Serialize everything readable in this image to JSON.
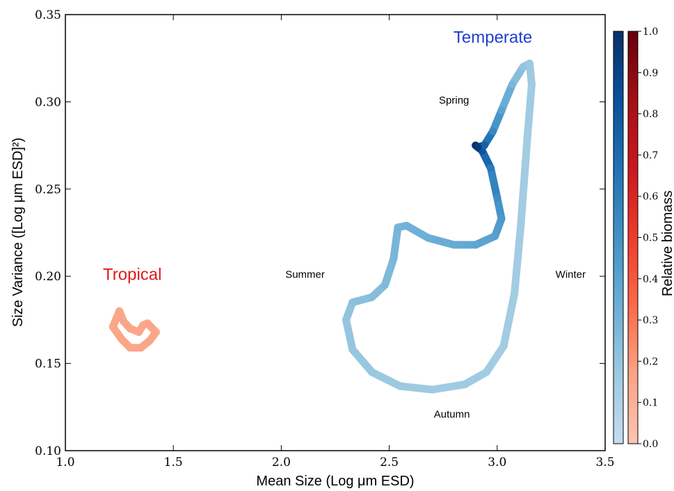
{
  "chart_data": {
    "type": "line",
    "xlabel": "Mean Size (Log μm ESD)",
    "ylabel": "Size Variance ([Log μm ESD]²)",
    "xlim": [
      1.0,
      3.5
    ],
    "ylim": [
      0.1,
      0.35
    ],
    "xticks": [
      1.0,
      1.5,
      2.0,
      2.5,
      3.0,
      3.5
    ],
    "xtick_labels": [
      "1.0",
      "1.5",
      "2.0",
      "2.5",
      "3.0",
      "3.5"
    ],
    "yticks": [
      0.1,
      0.15,
      0.2,
      0.25,
      0.3,
      0.35
    ],
    "ytick_labels": [
      "0.10",
      "0.15",
      "0.20",
      "0.25",
      "0.30",
      "0.35"
    ],
    "grid": false,
    "series": [
      {
        "name": "Temperate",
        "color": "#1f3fd1",
        "colormap": "Blues",
        "points": [
          {
            "x": 2.9,
            "y": 0.275,
            "biomass": 1.0
          },
          {
            "x": 2.93,
            "y": 0.272,
            "biomass": 0.82
          },
          {
            "x": 2.97,
            "y": 0.262,
            "biomass": 0.62
          },
          {
            "x": 3.0,
            "y": 0.245,
            "biomass": 0.52
          },
          {
            "x": 3.02,
            "y": 0.233,
            "biomass": 0.46
          },
          {
            "x": 2.99,
            "y": 0.223,
            "biomass": 0.42
          },
          {
            "x": 2.9,
            "y": 0.218,
            "biomass": 0.38
          },
          {
            "x": 2.8,
            "y": 0.218,
            "biomass": 0.35
          },
          {
            "x": 2.68,
            "y": 0.222,
            "biomass": 0.33
          },
          {
            "x": 2.58,
            "y": 0.229,
            "biomass": 0.31
          },
          {
            "x": 2.54,
            "y": 0.228,
            "biomass": 0.3
          },
          {
            "x": 2.52,
            "y": 0.21,
            "biomass": 0.28
          },
          {
            "x": 2.48,
            "y": 0.195,
            "biomass": 0.26
          },
          {
            "x": 2.42,
            "y": 0.188,
            "biomass": 0.24
          },
          {
            "x": 2.33,
            "y": 0.185,
            "biomass": 0.22
          },
          {
            "x": 2.3,
            "y": 0.175,
            "biomass": 0.2
          },
          {
            "x": 2.33,
            "y": 0.158,
            "biomass": 0.19
          },
          {
            "x": 2.42,
            "y": 0.145,
            "biomass": 0.18
          },
          {
            "x": 2.55,
            "y": 0.137,
            "biomass": 0.17
          },
          {
            "x": 2.7,
            "y": 0.135,
            "biomass": 0.16
          },
          {
            "x": 2.85,
            "y": 0.138,
            "biomass": 0.16
          },
          {
            "x": 2.95,
            "y": 0.145,
            "biomass": 0.15
          },
          {
            "x": 3.03,
            "y": 0.16,
            "biomass": 0.15
          },
          {
            "x": 3.08,
            "y": 0.19,
            "biomass": 0.15
          },
          {
            "x": 3.11,
            "y": 0.23,
            "biomass": 0.15
          },
          {
            "x": 3.14,
            "y": 0.28,
            "biomass": 0.15
          },
          {
            "x": 3.16,
            "y": 0.31,
            "biomass": 0.16
          },
          {
            "x": 3.15,
            "y": 0.322,
            "biomass": 0.17
          },
          {
            "x": 3.12,
            "y": 0.32,
            "biomass": 0.2
          },
          {
            "x": 3.07,
            "y": 0.31,
            "biomass": 0.28
          },
          {
            "x": 3.02,
            "y": 0.295,
            "biomass": 0.4
          },
          {
            "x": 2.98,
            "y": 0.283,
            "biomass": 0.55
          },
          {
            "x": 2.94,
            "y": 0.275,
            "biomass": 0.75
          },
          {
            "x": 2.91,
            "y": 0.274,
            "biomass": 0.95
          }
        ]
      },
      {
        "name": "Tropical",
        "color": "#e01b1b",
        "colormap": "Reds",
        "points": [
          {
            "x": 1.22,
            "y": 0.171,
            "biomass": 0.15
          },
          {
            "x": 1.25,
            "y": 0.18,
            "biomass": 0.15
          },
          {
            "x": 1.27,
            "y": 0.174,
            "biomass": 0.15
          },
          {
            "x": 1.3,
            "y": 0.17,
            "biomass": 0.15
          },
          {
            "x": 1.34,
            "y": 0.168,
            "biomass": 0.15
          },
          {
            "x": 1.36,
            "y": 0.172,
            "biomass": 0.15
          },
          {
            "x": 1.38,
            "y": 0.173,
            "biomass": 0.15
          },
          {
            "x": 1.42,
            "y": 0.168,
            "biomass": 0.15
          },
          {
            "x": 1.39,
            "y": 0.163,
            "biomass": 0.15
          },
          {
            "x": 1.35,
            "y": 0.159,
            "biomass": 0.15
          },
          {
            "x": 1.3,
            "y": 0.159,
            "biomass": 0.15
          },
          {
            "x": 1.26,
            "y": 0.164,
            "biomass": 0.15
          },
          {
            "x": 1.22,
            "y": 0.171,
            "biomass": 0.15
          }
        ]
      }
    ],
    "annotations": {
      "temperate": {
        "text": "Temperate",
        "x": 2.98,
        "y": 0.337,
        "color": "#1f3fd1"
      },
      "tropical": {
        "text": "Tropical",
        "x": 1.31,
        "y": 0.201,
        "color": "#e01b1b"
      },
      "spring": {
        "text": "Spring",
        "x": 2.8,
        "y": 0.301
      },
      "summer": {
        "text": "Summer",
        "x": 2.11,
        "y": 0.201
      },
      "winter": {
        "text": "Winter",
        "x": 3.34,
        "y": 0.201
      },
      "autumn": {
        "text": "Autumn",
        "x": 2.79,
        "y": 0.121
      }
    },
    "colorbar": {
      "label": "Relative biomass",
      "ticks": [
        0.0,
        0.1,
        0.2,
        0.3,
        0.4,
        0.5,
        0.6,
        0.7,
        0.8,
        0.9,
        1.0
      ],
      "tick_labels": [
        "0.0",
        "0.1",
        "0.2",
        "0.3",
        "0.4",
        "0.5",
        "0.6",
        "0.7",
        "0.8",
        "0.9",
        "1.0"
      ],
      "blues": [
        "#c6dbef",
        "#9ecae1",
        "#6baed6",
        "#4292c6",
        "#2171b5",
        "#08519c",
        "#08306b"
      ],
      "reds": [
        "#fcc5b0",
        "#fca385",
        "#fb6a4a",
        "#ef3b2c",
        "#cb181d",
        "#a50f15",
        "#67000d"
      ]
    }
  }
}
